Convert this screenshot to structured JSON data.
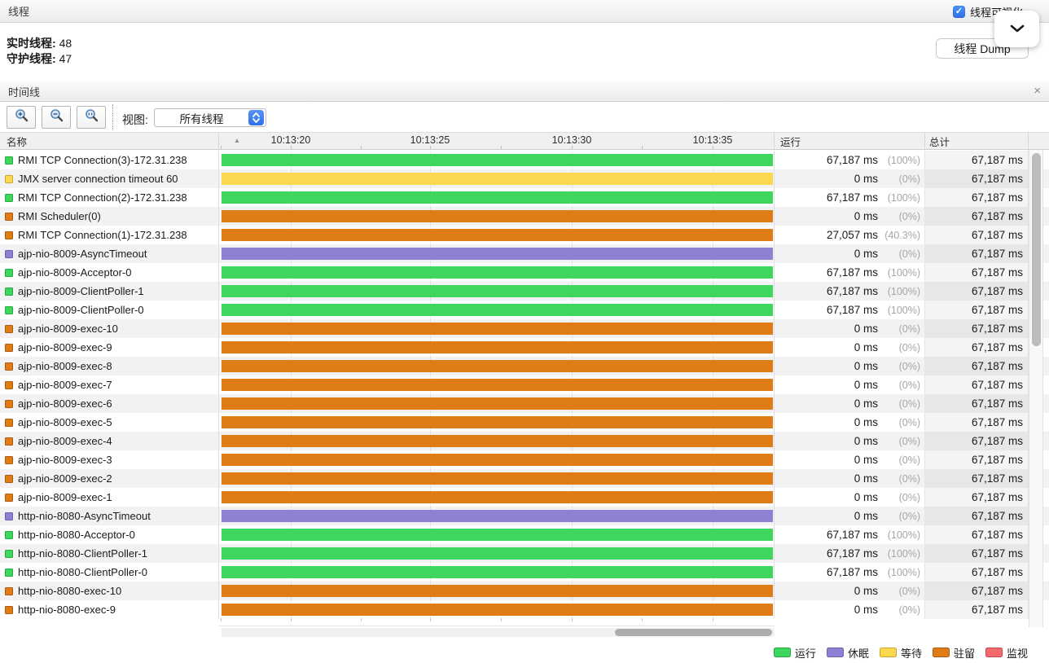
{
  "icons": {
    "close": "×",
    "check": "✓",
    "sort_asc": "▲"
  },
  "threads_panel": {
    "title": "线程",
    "visualization_checkbox_label": "线程可视化",
    "live_threads_label": "实时线程:",
    "live_threads_value": "48",
    "daemon_threads_label": "守护线程:",
    "daemon_threads_value": "47",
    "dump_button_label": "线程 Dump"
  },
  "timeline_panel": {
    "title": "时间线",
    "view_label": "视图:",
    "view_value": "所有线程"
  },
  "table": {
    "columns": {
      "name": "名称",
      "running": "运行",
      "total": "总计"
    },
    "time_ticks": [
      "10:13:20",
      "10:13:25",
      "10:13:30",
      "10:13:35"
    ],
    "rows": [
      {
        "name": "RMI TCP Connection(3)-172.31.238",
        "state": "running",
        "running_ms": "67,187 ms",
        "running_pct": "(100%)",
        "total": "67,187 ms"
      },
      {
        "name": "JMX server connection timeout 60",
        "state": "waiting",
        "running_ms": "0 ms",
        "running_pct": "(0%)",
        "total": "67,187 ms"
      },
      {
        "name": "RMI TCP Connection(2)-172.31.238",
        "state": "running",
        "running_ms": "67,187 ms",
        "running_pct": "(100%)",
        "total": "67,187 ms"
      },
      {
        "name": "RMI Scheduler(0)",
        "state": "park",
        "running_ms": "0 ms",
        "running_pct": "(0%)",
        "total": "67,187 ms"
      },
      {
        "name": "RMI TCP Connection(1)-172.31.238",
        "state": "park",
        "running_ms": "27,057 ms",
        "running_pct": "(40.3%)",
        "total": "67,187 ms"
      },
      {
        "name": "ajp-nio-8009-AsyncTimeout",
        "state": "sleeping",
        "running_ms": "0 ms",
        "running_pct": "(0%)",
        "total": "67,187 ms"
      },
      {
        "name": "ajp-nio-8009-Acceptor-0",
        "state": "running",
        "running_ms": "67,187 ms",
        "running_pct": "(100%)",
        "total": "67,187 ms"
      },
      {
        "name": "ajp-nio-8009-ClientPoller-1",
        "state": "running",
        "running_ms": "67,187 ms",
        "running_pct": "(100%)",
        "total": "67,187 ms"
      },
      {
        "name": "ajp-nio-8009-ClientPoller-0",
        "state": "running",
        "running_ms": "67,187 ms",
        "running_pct": "(100%)",
        "total": "67,187 ms"
      },
      {
        "name": "ajp-nio-8009-exec-10",
        "state": "park",
        "running_ms": "0 ms",
        "running_pct": "(0%)",
        "total": "67,187 ms"
      },
      {
        "name": "ajp-nio-8009-exec-9",
        "state": "park",
        "running_ms": "0 ms",
        "running_pct": "(0%)",
        "total": "67,187 ms"
      },
      {
        "name": "ajp-nio-8009-exec-8",
        "state": "park",
        "running_ms": "0 ms",
        "running_pct": "(0%)",
        "total": "67,187 ms"
      },
      {
        "name": "ajp-nio-8009-exec-7",
        "state": "park",
        "running_ms": "0 ms",
        "running_pct": "(0%)",
        "total": "67,187 ms"
      },
      {
        "name": "ajp-nio-8009-exec-6",
        "state": "park",
        "running_ms": "0 ms",
        "running_pct": "(0%)",
        "total": "67,187 ms"
      },
      {
        "name": "ajp-nio-8009-exec-5",
        "state": "park",
        "running_ms": "0 ms",
        "running_pct": "(0%)",
        "total": "67,187 ms"
      },
      {
        "name": "ajp-nio-8009-exec-4",
        "state": "park",
        "running_ms": "0 ms",
        "running_pct": "(0%)",
        "total": "67,187 ms"
      },
      {
        "name": "ajp-nio-8009-exec-3",
        "state": "park",
        "running_ms": "0 ms",
        "running_pct": "(0%)",
        "total": "67,187 ms"
      },
      {
        "name": "ajp-nio-8009-exec-2",
        "state": "park",
        "running_ms": "0 ms",
        "running_pct": "(0%)",
        "total": "67,187 ms"
      },
      {
        "name": "ajp-nio-8009-exec-1",
        "state": "park",
        "running_ms": "0 ms",
        "running_pct": "(0%)",
        "total": "67,187 ms"
      },
      {
        "name": "http-nio-8080-AsyncTimeout",
        "state": "sleeping",
        "running_ms": "0 ms",
        "running_pct": "(0%)",
        "total": "67,187 ms"
      },
      {
        "name": "http-nio-8080-Acceptor-0",
        "state": "running",
        "running_ms": "67,187 ms",
        "running_pct": "(100%)",
        "total": "67,187 ms"
      },
      {
        "name": "http-nio-8080-ClientPoller-1",
        "state": "running",
        "running_ms": "67,187 ms",
        "running_pct": "(100%)",
        "total": "67,187 ms"
      },
      {
        "name": "http-nio-8080-ClientPoller-0",
        "state": "running",
        "running_ms": "67,187 ms",
        "running_pct": "(100%)",
        "total": "67,187 ms"
      },
      {
        "name": "http-nio-8080-exec-10",
        "state": "park",
        "running_ms": "0 ms",
        "running_pct": "(0%)",
        "total": "67,187 ms"
      },
      {
        "name": "http-nio-8080-exec-9",
        "state": "park",
        "running_ms": "0 ms",
        "running_pct": "(0%)",
        "total": "67,187 ms"
      }
    ]
  },
  "state_colors": {
    "running": "#3ed65c",
    "sleeping": "#8e80d2",
    "waiting": "#fad94f",
    "park": "#df7c15",
    "monitor": "#f4696b"
  },
  "state_border_colors": {
    "running": "#27a845",
    "sleeping": "#6b5fae",
    "waiting": "#cda62c",
    "park": "#a85a10",
    "monitor": "#c84a4e"
  },
  "legend": [
    {
      "label": "运行",
      "state": "running"
    },
    {
      "label": "休眠",
      "state": "sleeping"
    },
    {
      "label": "等待",
      "state": "waiting"
    },
    {
      "label": "驻留",
      "state": "park"
    },
    {
      "label": "监视",
      "state": "monitor"
    }
  ]
}
